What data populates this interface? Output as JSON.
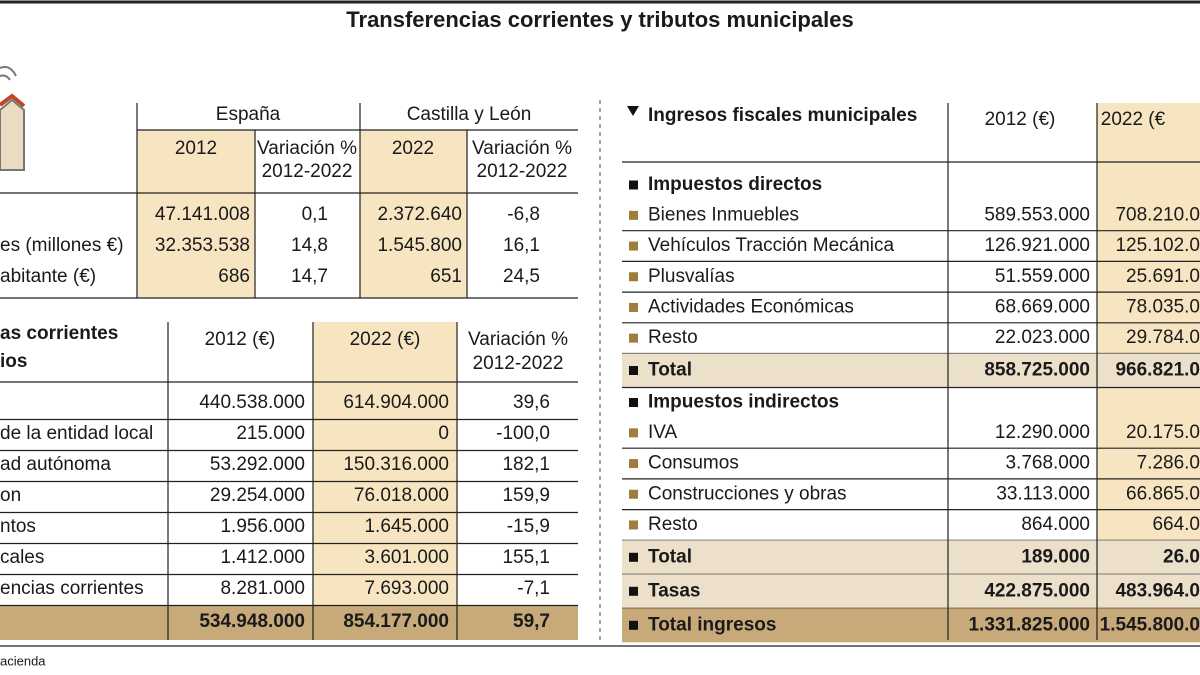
{
  "title": "Transferencias corrientes y tributos municipales",
  "table1": {
    "groups": [
      "España",
      "Castilla y León"
    ],
    "columns": [
      [
        "2012"
      ],
      [
        "Variación %",
        "2012-2022"
      ],
      [
        "2022"
      ],
      [
        "Variación %",
        "2012-2022"
      ]
    ],
    "rows": [
      [
        null,
        "47.141.008",
        "0,1",
        "2.372.640",
        "-6,8"
      ],
      [
        "es (millones €)",
        "32.353.538",
        "14,8",
        "1.545.800",
        "16,1"
      ],
      [
        "abitante (€)",
        "686",
        "14,7",
        "651",
        "24,5"
      ]
    ]
  },
  "table2": {
    "heading": [
      "as corrientes",
      "ios"
    ],
    "columns": [
      [
        "2012 (€)"
      ],
      [
        "2022 (€)"
      ],
      [
        "Variación %",
        "2012-2022"
      ]
    ],
    "rows": [
      [
        null,
        "440.538.000",
        "614.904.000",
        "39,6"
      ],
      [
        "de la entidad local",
        "215.000",
        "0",
        "-100,0"
      ],
      [
        "ad autónoma",
        "53.292.000",
        "150.316.000",
        "182,1"
      ],
      [
        "on",
        "29.254.000",
        "76.018.000",
        "159,9"
      ],
      [
        "ntos",
        "1.956.000",
        "1.645.000",
        "-15,9"
      ],
      [
        "cales",
        "1.412.000",
        "3.601.000",
        "155,1"
      ],
      [
        "encias corrientes",
        "8.281.000",
        "7.693.000",
        "-7,1"
      ],
      [
        null,
        "534.948.000",
        "854.177.000",
        "59,7"
      ]
    ]
  },
  "table3": {
    "title": "Ingresos fiscales municipales",
    "columns": [
      "2012 (€)",
      "2022 (€"
    ],
    "rows": [
      {
        "kind": "heading",
        "label": "Impuestos directos"
      },
      {
        "kind": "item",
        "label": "Bienes Inmuebles",
        "values": [
          "589.553.000",
          "708.210.0"
        ]
      },
      {
        "kind": "item",
        "label": "Vehículos Tracción Mecánica",
        "values": [
          "126.921.000",
          "125.102.0"
        ]
      },
      {
        "kind": "item",
        "label": "Plusvalías",
        "values": [
          "51.559.000",
          "25.691.0"
        ]
      },
      {
        "kind": "item",
        "label": "Actividades Económicas",
        "values": [
          "68.669.000",
          "78.035.0"
        ]
      },
      {
        "kind": "item",
        "label": "Resto",
        "values": [
          "22.023.000",
          "29.784.0"
        ]
      },
      {
        "kind": "total",
        "label": "Total",
        "values": [
          "858.725.000",
          "966.821.0"
        ]
      },
      {
        "kind": "heading",
        "label": "Impuestos indirectos"
      },
      {
        "kind": "item",
        "label": "IVA",
        "values": [
          "12.290.000",
          "20.175.0"
        ]
      },
      {
        "kind": "item",
        "label": "Consumos",
        "values": [
          "3.768.000",
          "7.286.0"
        ]
      },
      {
        "kind": "item",
        "label": "Construcciones y obras",
        "values": [
          "33.113.000",
          "66.865.0"
        ]
      },
      {
        "kind": "item",
        "label": "Resto",
        "values": [
          "864.000",
          "664.0"
        ]
      },
      {
        "kind": "total",
        "label": "Total",
        "values": [
          "189.000",
          "26.0"
        ]
      },
      {
        "kind": "total",
        "label": "Tasas",
        "values": [
          "422.875.000",
          "483.964.0"
        ]
      },
      {
        "kind": "grand",
        "label": "Total ingresos",
        "values": [
          "1.331.825.000",
          "1.545.800.0"
        ]
      }
    ]
  },
  "source": "acienda"
}
